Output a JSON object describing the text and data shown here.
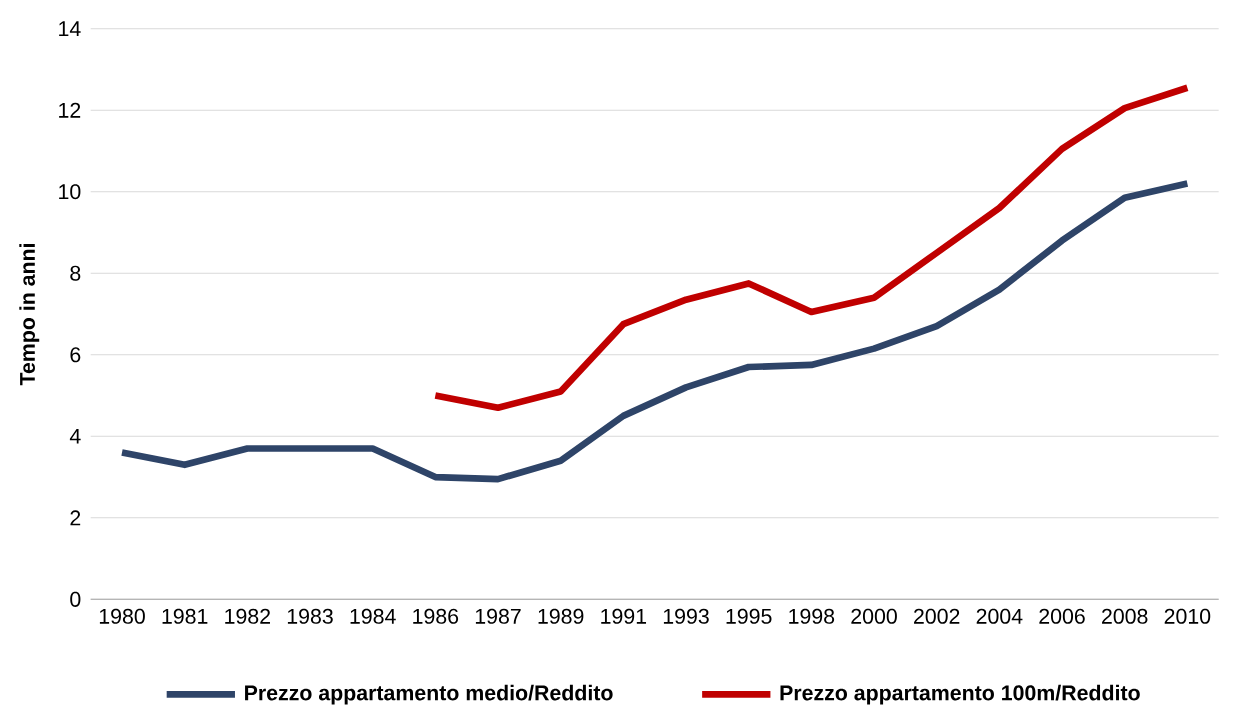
{
  "chart_data": {
    "type": "line",
    "ylabel": "Tempo in anni",
    "categories": [
      "1980",
      "1981",
      "1982",
      "1983",
      "1984",
      "1986",
      "1987",
      "1989",
      "1991",
      "1993",
      "1995",
      "1998",
      "2000",
      "2002",
      "2004",
      "2006",
      "2008",
      "2010"
    ],
    "series": [
      {
        "name": "Prezzo appartamento medio/Reddito",
        "color": "#2e4468",
        "values": [
          3.6,
          3.3,
          3.7,
          3.7,
          3.7,
          3.0,
          2.95,
          3.4,
          4.5,
          5.2,
          5.7,
          5.75,
          6.15,
          6.7,
          7.6,
          8.8,
          9.85,
          10.2
        ]
      },
      {
        "name": "Prezzo appartamento 100m/Reddito",
        "color": "#c00000",
        "values": [
          null,
          null,
          null,
          null,
          null,
          5.0,
          4.7,
          5.1,
          6.75,
          7.35,
          7.75,
          7.05,
          7.4,
          8.5,
          9.6,
          11.05,
          12.05,
          12.55
        ]
      }
    ],
    "ylim": [
      0,
      14
    ],
    "yticks": [
      0,
      2,
      4,
      6,
      8,
      10,
      12,
      14
    ],
    "grid": "y",
    "legend": "bottom",
    "marker": "none",
    "line_style": "solid"
  }
}
